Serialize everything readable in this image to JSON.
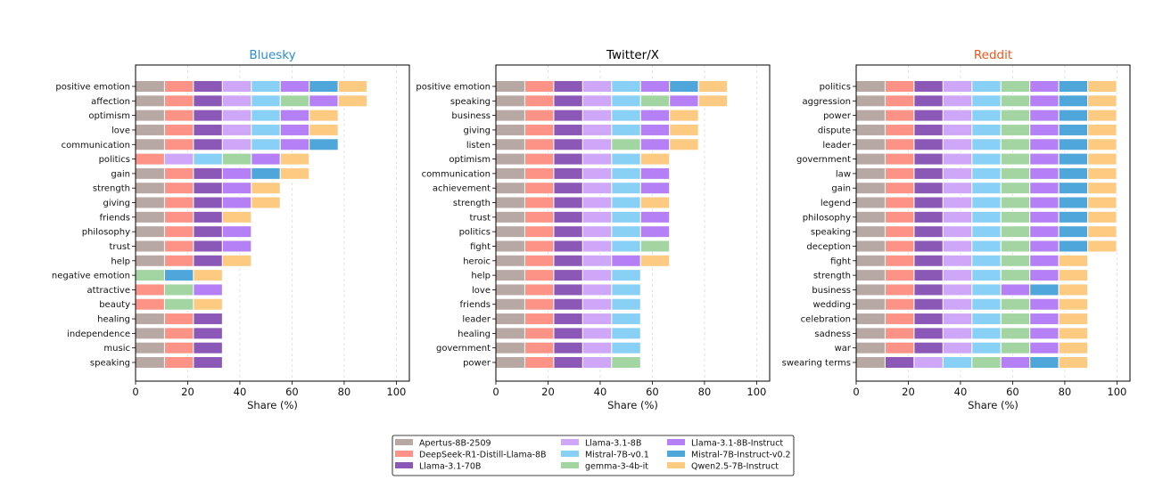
{
  "chart_data": [
    {
      "type": "bar",
      "orientation": "horizontal",
      "stacked": true,
      "title": "Bluesky",
      "title_color": "#2b8fcf",
      "xlabel": "Share (%)",
      "xlim": [
        0,
        105
      ],
      "xticks": [
        0,
        20,
        40,
        60,
        80,
        100
      ],
      "grid": "vertical dashed",
      "rows": [
        {
          "label": "positive emotion",
          "shares": [
            11.1,
            11.1,
            11.1,
            11.1,
            11.1,
            0,
            11.1,
            11.1,
            11.1
          ]
        },
        {
          "label": "affection",
          "shares": [
            11.1,
            11.1,
            11.1,
            11.1,
            11.1,
            11.1,
            11.1,
            0,
            11.1
          ]
        },
        {
          "label": "optimism",
          "shares": [
            11.1,
            11.1,
            11.1,
            11.1,
            11.1,
            0,
            11.1,
            0,
            11.1
          ]
        },
        {
          "label": "love",
          "shares": [
            11.1,
            11.1,
            11.1,
            11.1,
            11.1,
            0,
            11.1,
            0,
            11.1
          ]
        },
        {
          "label": "communication",
          "shares": [
            11.1,
            11.1,
            11.1,
            11.1,
            11.1,
            0,
            11.1,
            11.1,
            0
          ]
        },
        {
          "label": "politics",
          "shares": [
            0,
            11.1,
            0,
            11.1,
            11.1,
            11.1,
            11.1,
            0,
            11.1
          ]
        },
        {
          "label": "gain",
          "shares": [
            11.1,
            11.1,
            11.1,
            0,
            0,
            0,
            11.1,
            11.1,
            11.1
          ]
        },
        {
          "label": "strength",
          "shares": [
            11.1,
            11.1,
            11.1,
            0,
            0,
            0,
            11.1,
            0,
            11.1
          ]
        },
        {
          "label": "giving",
          "shares": [
            11.1,
            11.1,
            11.1,
            0,
            0,
            0,
            11.1,
            0,
            11.1
          ]
        },
        {
          "label": "friends",
          "shares": [
            11.1,
            11.1,
            11.1,
            0,
            0,
            0,
            0,
            0,
            11.1
          ]
        },
        {
          "label": "philosophy",
          "shares": [
            11.1,
            11.1,
            11.1,
            0,
            0,
            0,
            11.1,
            0,
            0
          ]
        },
        {
          "label": "trust",
          "shares": [
            11.1,
            11.1,
            11.1,
            0,
            0,
            0,
            11.1,
            0,
            0
          ]
        },
        {
          "label": "help",
          "shares": [
            11.1,
            11.1,
            11.1,
            0,
            0,
            0,
            0,
            0,
            11.1
          ]
        },
        {
          "label": "negative emotion",
          "shares": [
            0,
            0,
            0,
            0,
            0,
            11.1,
            0,
            11.1,
            11.1
          ]
        },
        {
          "label": "attractive",
          "shares": [
            0,
            11.1,
            0,
            0,
            0,
            11.1,
            11.1,
            0,
            0
          ]
        },
        {
          "label": "beauty",
          "shares": [
            0,
            11.1,
            0,
            0,
            0,
            11.1,
            0,
            0,
            11.1
          ]
        },
        {
          "label": "healing",
          "shares": [
            11.1,
            11.1,
            11.1,
            0,
            0,
            0,
            0,
            0,
            0
          ]
        },
        {
          "label": "independence",
          "shares": [
            11.1,
            11.1,
            11.1,
            0,
            0,
            0,
            0,
            0,
            0
          ]
        },
        {
          "label": "music",
          "shares": [
            11.1,
            11.1,
            11.1,
            0,
            0,
            0,
            0,
            0,
            0
          ]
        },
        {
          "label": "speaking",
          "shares": [
            11.1,
            11.1,
            11.1,
            0,
            0,
            0,
            0,
            0,
            0
          ]
        }
      ]
    },
    {
      "type": "bar",
      "orientation": "horizontal",
      "stacked": true,
      "title": "Twitter/X",
      "title_color": "#000000",
      "xlabel": "Share (%)",
      "xlim": [
        0,
        105
      ],
      "xticks": [
        0,
        20,
        40,
        60,
        80,
        100
      ],
      "grid": "vertical dashed",
      "rows": [
        {
          "label": "positive emotion",
          "shares": [
            11.1,
            11.1,
            11.1,
            11.1,
            11.1,
            0,
            11.1,
            11.1,
            11.1
          ]
        },
        {
          "label": "speaking",
          "shares": [
            11.1,
            11.1,
            11.1,
            11.1,
            11.1,
            11.1,
            11.1,
            0,
            11.1
          ]
        },
        {
          "label": "business",
          "shares": [
            11.1,
            11.1,
            11.1,
            11.1,
            11.1,
            0,
            11.1,
            0,
            11.1
          ]
        },
        {
          "label": "giving",
          "shares": [
            11.1,
            11.1,
            11.1,
            11.1,
            11.1,
            0,
            11.1,
            0,
            11.1
          ]
        },
        {
          "label": "listen",
          "shares": [
            11.1,
            11.1,
            11.1,
            11.1,
            0,
            11.1,
            11.1,
            0,
            11.1
          ]
        },
        {
          "label": "optimism",
          "shares": [
            11.1,
            11.1,
            11.1,
            11.1,
            11.1,
            0,
            0,
            0,
            11.1
          ]
        },
        {
          "label": "communication",
          "shares": [
            11.1,
            11.1,
            11.1,
            11.1,
            11.1,
            0,
            11.1,
            0,
            0
          ]
        },
        {
          "label": "achievement",
          "shares": [
            11.1,
            11.1,
            11.1,
            11.1,
            11.1,
            0,
            11.1,
            0,
            0
          ]
        },
        {
          "label": "strength",
          "shares": [
            11.1,
            11.1,
            11.1,
            11.1,
            11.1,
            0,
            0,
            0,
            11.1
          ]
        },
        {
          "label": "trust",
          "shares": [
            11.1,
            11.1,
            11.1,
            11.1,
            11.1,
            0,
            11.1,
            0,
            0
          ]
        },
        {
          "label": "politics",
          "shares": [
            11.1,
            11.1,
            11.1,
            11.1,
            11.1,
            0,
            11.1,
            0,
            0
          ]
        },
        {
          "label": "fight",
          "shares": [
            11.1,
            11.1,
            11.1,
            11.1,
            11.1,
            11.1,
            0,
            0,
            0
          ]
        },
        {
          "label": "heroic",
          "shares": [
            11.1,
            11.1,
            11.1,
            11.1,
            0,
            0,
            11.1,
            0,
            11.1
          ]
        },
        {
          "label": "help",
          "shares": [
            11.1,
            11.1,
            11.1,
            11.1,
            11.1,
            0,
            0,
            0,
            0
          ]
        },
        {
          "label": "love",
          "shares": [
            11.1,
            11.1,
            11.1,
            11.1,
            11.1,
            0,
            0,
            0,
            0
          ]
        },
        {
          "label": "friends",
          "shares": [
            11.1,
            11.1,
            11.1,
            11.1,
            11.1,
            0,
            0,
            0,
            0
          ]
        },
        {
          "label": "leader",
          "shares": [
            11.1,
            11.1,
            11.1,
            11.1,
            11.1,
            0,
            0,
            0,
            0
          ]
        },
        {
          "label": "healing",
          "shares": [
            11.1,
            11.1,
            11.1,
            11.1,
            11.1,
            0,
            0,
            0,
            0
          ]
        },
        {
          "label": "government",
          "shares": [
            11.1,
            11.1,
            11.1,
            11.1,
            11.1,
            0,
            0,
            0,
            0
          ]
        },
        {
          "label": "power",
          "shares": [
            11.1,
            11.1,
            11.1,
            11.1,
            0,
            11.1,
            0,
            0,
            0
          ]
        }
      ]
    },
    {
      "type": "bar",
      "orientation": "horizontal",
      "stacked": true,
      "title": "Reddit",
      "title_color": "#f0561d",
      "xlabel": "Share (%)",
      "xlim": [
        0,
        105
      ],
      "xticks": [
        0,
        20,
        40,
        60,
        80,
        100
      ],
      "grid": "vertical dashed",
      "rows": [
        {
          "label": "politics",
          "shares": [
            11.1,
            11.1,
            11.1,
            11.1,
            11.1,
            11.1,
            11.1,
            11.1,
            11.1
          ]
        },
        {
          "label": "aggression",
          "shares": [
            11.1,
            11.1,
            11.1,
            11.1,
            11.1,
            11.1,
            11.1,
            11.1,
            11.1
          ]
        },
        {
          "label": "power",
          "shares": [
            11.1,
            11.1,
            11.1,
            11.1,
            11.1,
            11.1,
            11.1,
            11.1,
            11.1
          ]
        },
        {
          "label": "dispute",
          "shares": [
            11.1,
            11.1,
            11.1,
            11.1,
            11.1,
            11.1,
            11.1,
            11.1,
            11.1
          ]
        },
        {
          "label": "leader",
          "shares": [
            11.1,
            11.1,
            11.1,
            11.1,
            11.1,
            11.1,
            11.1,
            11.1,
            11.1
          ]
        },
        {
          "label": "government",
          "shares": [
            11.1,
            11.1,
            11.1,
            11.1,
            11.1,
            11.1,
            11.1,
            11.1,
            11.1
          ]
        },
        {
          "label": "law",
          "shares": [
            11.1,
            11.1,
            11.1,
            11.1,
            11.1,
            11.1,
            11.1,
            11.1,
            11.1
          ]
        },
        {
          "label": "gain",
          "shares": [
            11.1,
            11.1,
            11.1,
            11.1,
            11.1,
            11.1,
            11.1,
            11.1,
            11.1
          ]
        },
        {
          "label": "legend",
          "shares": [
            11.1,
            11.1,
            11.1,
            11.1,
            11.1,
            11.1,
            11.1,
            11.1,
            11.1
          ]
        },
        {
          "label": "philosophy",
          "shares": [
            11.1,
            11.1,
            11.1,
            11.1,
            11.1,
            11.1,
            11.1,
            11.1,
            11.1
          ]
        },
        {
          "label": "speaking",
          "shares": [
            11.1,
            11.1,
            11.1,
            11.1,
            11.1,
            11.1,
            11.1,
            11.1,
            11.1
          ]
        },
        {
          "label": "deception",
          "shares": [
            11.1,
            11.1,
            11.1,
            11.1,
            11.1,
            11.1,
            11.1,
            11.1,
            11.1
          ]
        },
        {
          "label": "fight",
          "shares": [
            11.1,
            11.1,
            11.1,
            11.1,
            11.1,
            11.1,
            11.1,
            0,
            11.1
          ]
        },
        {
          "label": "strength",
          "shares": [
            11.1,
            11.1,
            11.1,
            11.1,
            11.1,
            11.1,
            11.1,
            0,
            11.1
          ]
        },
        {
          "label": "business",
          "shares": [
            11.1,
            11.1,
            11.1,
            11.1,
            11.1,
            0,
            11.1,
            11.1,
            11.1
          ]
        },
        {
          "label": "wedding",
          "shares": [
            11.1,
            11.1,
            11.1,
            11.1,
            11.1,
            11.1,
            11.1,
            0,
            11.1
          ]
        },
        {
          "label": "celebration",
          "shares": [
            11.1,
            11.1,
            11.1,
            11.1,
            11.1,
            11.1,
            11.1,
            0,
            11.1
          ]
        },
        {
          "label": "sadness",
          "shares": [
            11.1,
            11.1,
            11.1,
            11.1,
            11.1,
            11.1,
            11.1,
            0,
            11.1
          ]
        },
        {
          "label": "war",
          "shares": [
            11.1,
            11.1,
            11.1,
            11.1,
            11.1,
            11.1,
            11.1,
            0,
            11.1
          ]
        },
        {
          "label": "swearing terms",
          "shares": [
            11.1,
            0,
            11.1,
            11.1,
            11.1,
            11.1,
            11.1,
            11.1,
            11.1
          ]
        }
      ]
    }
  ],
  "legend": {
    "placement": "bottom-center",
    "series": [
      {
        "name": "Apertus-8B-2509",
        "color": "#b8a8a3"
      },
      {
        "name": "DeepSeek-R1-Distill-Llama-8B",
        "color": "#fc9386"
      },
      {
        "name": "Llama-3.1-70B",
        "color": "#8c58b8"
      },
      {
        "name": "Llama-3.1-8B",
        "color": "#cfa7f8"
      },
      {
        "name": "Mistral-7B-v0.1",
        "color": "#88d0f6"
      },
      {
        "name": "gemma-3-4b-it",
        "color": "#a3d5a3"
      },
      {
        "name": "Llama-3.1-8B-Instruct",
        "color": "#b57ff5"
      },
      {
        "name": "Mistral-7B-Instruct-v0.2",
        "color": "#4ea6da"
      },
      {
        "name": "Qwen2.5-7B-Instruct",
        "color": "#fdca82"
      }
    ]
  }
}
